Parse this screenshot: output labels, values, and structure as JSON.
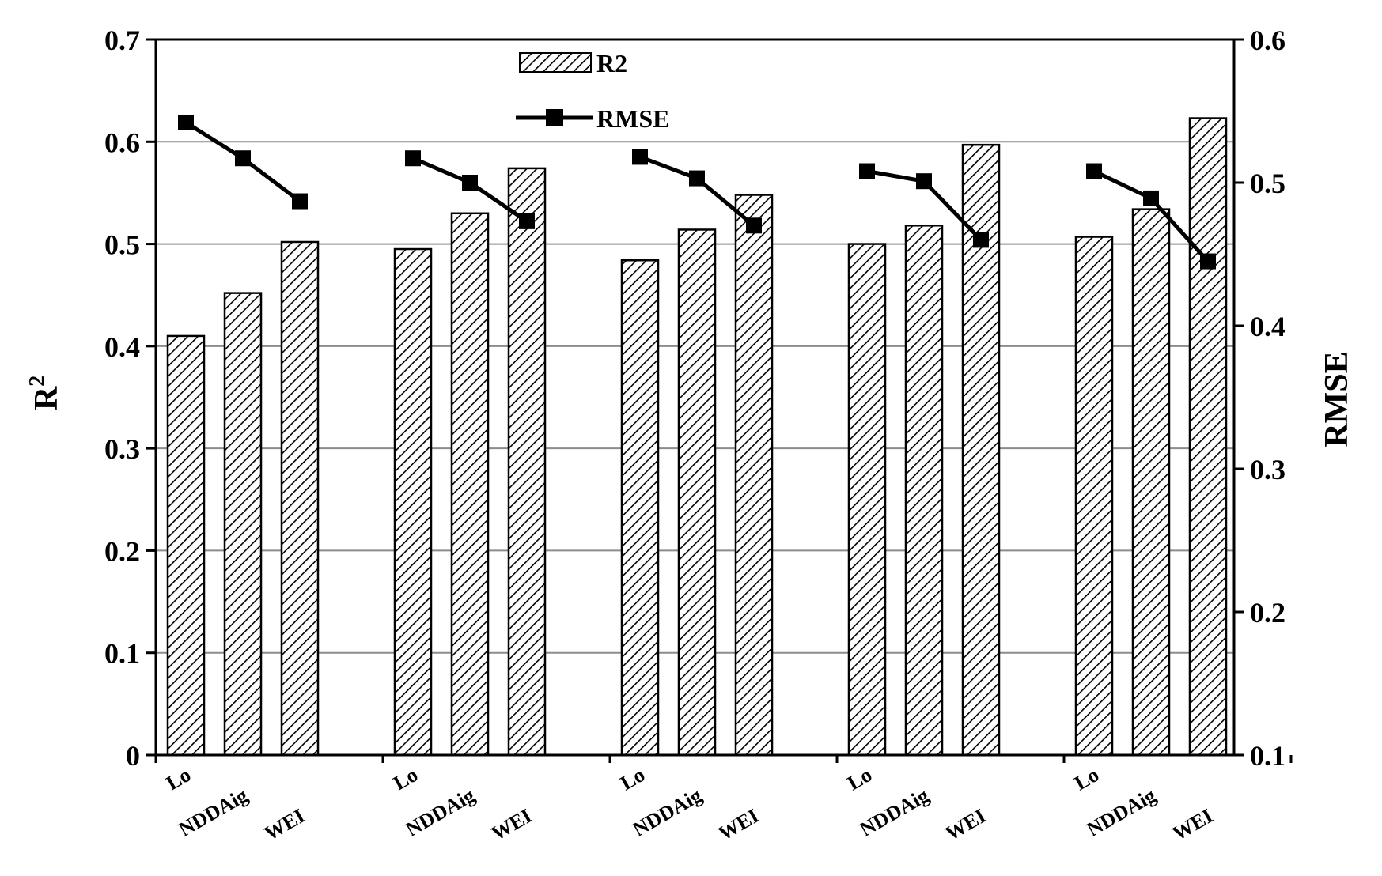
{
  "chart_data": {
    "type": "bar",
    "groups": 5,
    "categories_per_group": [
      "Lo",
      "NDDAig",
      "WEI"
    ],
    "series": [
      {
        "name": "R2",
        "type": "bar",
        "axis": "left",
        "values": [
          [
            0.41,
            0.452,
            0.502
          ],
          [
            0.495,
            0.53,
            0.574
          ],
          [
            0.484,
            0.514,
            0.548
          ],
          [
            0.5,
            0.518,
            0.597
          ],
          [
            0.507,
            0.534,
            0.623
          ]
        ]
      },
      {
        "name": "RMSE",
        "type": "line",
        "axis": "right",
        "values": [
          [
            0.542,
            0.517,
            0.487
          ],
          [
            0.517,
            0.5,
            0.473
          ],
          [
            0.518,
            0.503,
            0.47
          ],
          [
            0.508,
            0.501,
            0.46
          ],
          [
            0.508,
            0.489,
            0.445
          ]
        ]
      }
    ],
    "y_left": {
      "label_main": "R",
      "label_sup": "2",
      "range": [
        0,
        0.7
      ],
      "ticks": [
        "0",
        "0.1",
        "0.2",
        "0.3",
        "0.4",
        "0.5",
        "0.6",
        "0.7"
      ]
    },
    "y_right": {
      "label": "RMSE",
      "range": [
        0.1,
        0.6
      ],
      "ticks": [
        "0.1",
        "0.2",
        "0.3",
        "0.4",
        "0.5",
        "0.6"
      ]
    },
    "grid": true,
    "legend": {
      "position": "top-center",
      "items": [
        "R2",
        "RMSE"
      ]
    },
    "colors": {
      "bar_fill": "#ffffff",
      "hatch": "#000000",
      "line": "#000000",
      "grid": "#8c8c8c"
    }
  }
}
